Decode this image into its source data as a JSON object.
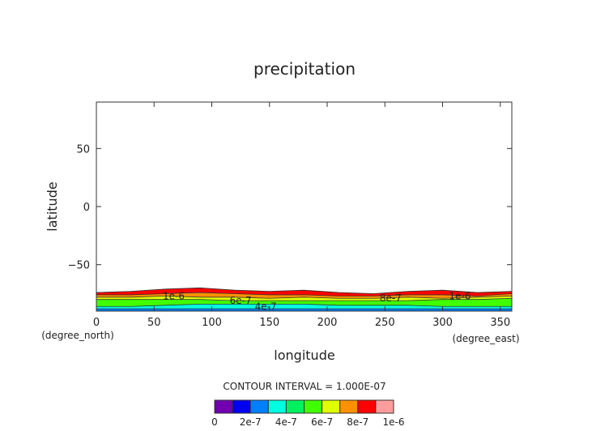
{
  "chart_data": {
    "type": "contour",
    "title": "precipitation",
    "xlabel": "longitude",
    "ylabel": "latitude",
    "x_unit": "(degree_east)",
    "y_unit": "(degree_north)",
    "xlim": [
      0,
      360
    ],
    "ylim": [
      -90,
      90
    ],
    "xticks": [
      "0",
      "50",
      "100",
      "150",
      "200",
      "250",
      "300",
      "350"
    ],
    "xtick_values": [
      0,
      50,
      100,
      150,
      200,
      250,
      300,
      350
    ],
    "yticks": [
      "50",
      "0",
      "−50"
    ],
    "ytick_values": [
      50,
      0,
      -50
    ],
    "contour_interval": "CONTOUR INTERVAL = 1.000E-07",
    "colorbar": {
      "colors": [
        "#7000b0",
        "#0000f0",
        "#0080ff",
        "#00ffe0",
        "#00f060",
        "#40ff00",
        "#e0ff00",
        "#ff9000",
        "#ff0000",
        "#ff9c9c"
      ],
      "labels": [
        "0",
        "2e-7",
        "4e-7",
        "6e-7",
        "8e-7",
        "1e-6"
      ]
    },
    "longitudes": [
      0,
      30,
      60,
      90,
      120,
      150,
      180,
      210,
      240,
      270,
      300,
      330,
      360
    ],
    "bands": [
      {
        "color": "#ff0000",
        "top": [
          -74,
          -73,
          -71,
          -70,
          -72,
          -73,
          -72,
          -74,
          -75,
          -73,
          -72,
          -74,
          -73
        ]
      },
      {
        "color": "#ff9000",
        "top": [
          -76,
          -76,
          -75,
          -74,
          -75,
          -76,
          -76,
          -77,
          -77,
          -76,
          -76,
          -77,
          -75
        ]
      },
      {
        "color": "#e0ff00",
        "top": [
          -78,
          -78,
          -77,
          -78,
          -78,
          -79,
          -78,
          -79,
          -79,
          -78,
          -79,
          -78,
          -77
        ]
      },
      {
        "color": "#40ff00",
        "top": [
          -80,
          -80,
          -80,
          -80,
          -81,
          -81,
          -81,
          -81,
          -81,
          -81,
          -80,
          -80,
          -79
        ]
      },
      {
        "color": "#00ffe0",
        "top": [
          -86,
          -86,
          -85,
          -84,
          -84,
          -84,
          -84,
          -85,
          -85,
          -85,
          -86,
          -86,
          -86
        ]
      },
      {
        "color": "#0080ff",
        "top": [
          -88,
          -88,
          -88,
          -88,
          -88,
          -88,
          -88,
          -88,
          -88,
          -88,
          -88,
          -88,
          -88
        ]
      }
    ],
    "contour_labels": [
      {
        "text": "1e-6",
        "lon": 67,
        "lat": -77
      },
      {
        "text": "6e-7",
        "lon": 125,
        "lat": -81
      },
      {
        "text": "4e-7",
        "lon": 125,
        "lat": -86
      },
      {
        "text": "8e-7",
        "lon": 255,
        "lat": -79
      },
      {
        "text": "1e-6",
        "lon": 315,
        "lat": -77
      }
    ]
  }
}
